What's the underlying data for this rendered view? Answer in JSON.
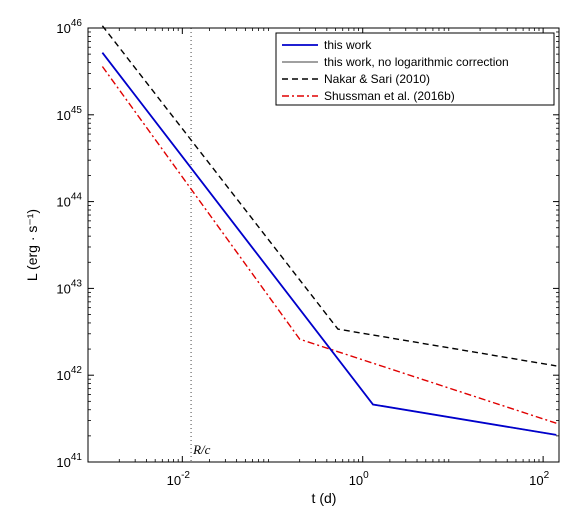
{
  "chart_data": {
    "type": "line",
    "xlabel": "t (d)",
    "ylabel": "L (erg · s⁻¹)",
    "xscale": "log",
    "yscale": "log",
    "xlim": [
      0.0009,
      150
    ],
    "ylim": [
      1e+41,
      1e+46
    ],
    "x_ticks": [
      {
        "value": 0.01,
        "base": "10",
        "exp": "-2"
      },
      {
        "value": 1,
        "base": "10",
        "exp": "0"
      },
      {
        "value": 100,
        "base": "10",
        "exp": "2"
      }
    ],
    "y_ticks": [
      {
        "value": 1e+41,
        "base": "10",
        "exp": "41"
      },
      {
        "value": 1e+42,
        "base": "10",
        "exp": "42"
      },
      {
        "value": 1e+43,
        "base": "10",
        "exp": "43"
      },
      {
        "value": 1e+44,
        "base": "10",
        "exp": "44"
      },
      {
        "value": 1e+45,
        "base": "10",
        "exp": "45"
      },
      {
        "value": 1e+46,
        "base": "10",
        "exp": "46"
      }
    ],
    "grid": false,
    "legend_position": "top-right",
    "series": [
      {
        "name": "this work",
        "color": "#0000cc",
        "dash": "solid",
        "x": [
          0.0013,
          1.3,
          140
        ],
        "y": [
          5.2e+45,
          4.6e+41,
          2.05e+41
        ]
      },
      {
        "name": "this work, no logarithmic correction",
        "color": "#808080",
        "dash": "solid",
        "x": [
          0.0013,
          1.3,
          140
        ],
        "y": [
          5.2e+45,
          4.6e+41,
          2.05e+41
        ]
      },
      {
        "name": "Nakar & Sari (2010)",
        "color": "#000000",
        "dash": "dashed",
        "x": [
          0.0013,
          0.53,
          140
        ],
        "y": [
          1.06e+46,
          3.4e+42,
          1.28e+42
        ]
      },
      {
        "name": "Shussman et al. (2016b)",
        "color": "#e00000",
        "dash": "dashdot",
        "x": [
          0.0013,
          0.2,
          140
        ],
        "y": [
          3.6e+45,
          2.6e+42,
          2.8e+41
        ]
      }
    ],
    "annotations": [
      {
        "text": "R/c",
        "x": 0.0125,
        "style": "dotted-vertical-line"
      }
    ]
  }
}
